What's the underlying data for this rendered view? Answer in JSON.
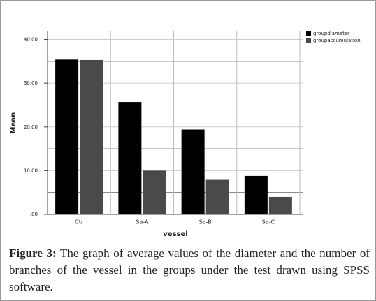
{
  "chart_data": {
    "type": "bar",
    "categories": [
      "Ctr",
      "Sa-A",
      "Sa-B",
      "Sa-C"
    ],
    "series": [
      {
        "name": "groupdiameter",
        "color": "#000000",
        "values": [
          35.4,
          25.7,
          19.4,
          8.8
        ]
      },
      {
        "name": "groupaccumulation",
        "color": "#4a4a4a",
        "values": [
          35.3,
          10.0,
          7.9,
          4.0
        ]
      }
    ],
    "ylim": [
      0,
      42
    ],
    "yticks": [
      {
        "value": 0,
        "label": ".00"
      },
      {
        "value": 10,
        "label": "10.00"
      },
      {
        "value": 20,
        "label": "20.00"
      },
      {
        "value": 30,
        "label": "30.00"
      },
      {
        "value": 40,
        "label": "40.00"
      }
    ],
    "ylabel": "Mean",
    "xlabel": "vessel",
    "grid": true,
    "legend": "top-right"
  },
  "caption": {
    "label": "Figure 3:",
    "text": "The graph of average values of the diameter and the number of branches of the vessel in the groups under the test drawn using SPSS software."
  }
}
